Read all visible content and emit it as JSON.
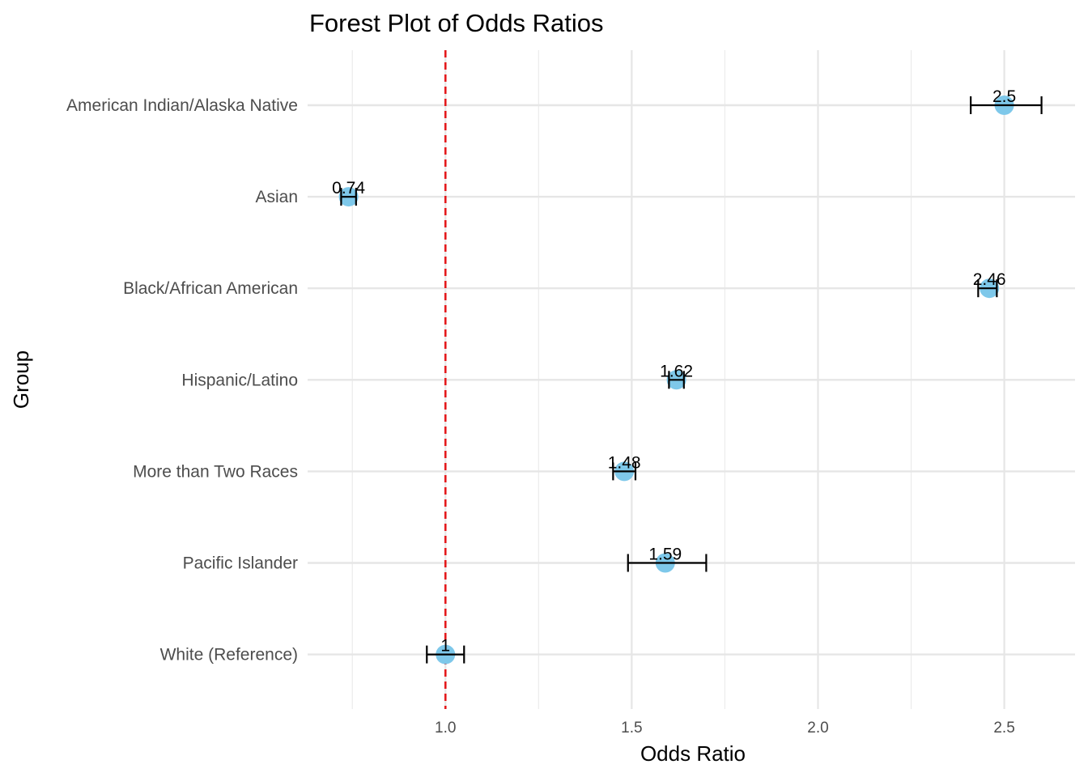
{
  "chart_data": {
    "type": "forest",
    "title": "Forest Plot of Odds Ratios",
    "xlabel": "Odds Ratio",
    "ylabel": "Group",
    "xlim": [
      0.63,
      2.69
    ],
    "x_ticks": [
      1.0,
      1.5,
      2.0,
      2.5
    ],
    "x_tick_labels": [
      "1.0",
      "1.5",
      "2.0",
      "2.5"
    ],
    "grid": true,
    "reference_line": {
      "x": 1.0,
      "color": "#e41a1c",
      "style": "dashed"
    },
    "point_color": "#7ec8ea",
    "errorbar_color": "#000000",
    "groups": [
      {
        "label": "American Indian/Alaska Native",
        "or": 2.5,
        "lower": 2.41,
        "upper": 2.6,
        "or_label": "2.5"
      },
      {
        "label": "Asian",
        "or": 0.74,
        "lower": 0.72,
        "upper": 0.76,
        "or_label": "0.74"
      },
      {
        "label": "Black/African American",
        "or": 2.46,
        "lower": 2.43,
        "upper": 2.48,
        "or_label": "2.46"
      },
      {
        "label": "Hispanic/Latino",
        "or": 1.62,
        "lower": 1.6,
        "upper": 1.64,
        "or_label": "1.62"
      },
      {
        "label": "More than Two Races",
        "or": 1.48,
        "lower": 1.45,
        "upper": 1.51,
        "or_label": "1.48"
      },
      {
        "label": "Pacific Islander",
        "or": 1.59,
        "lower": 1.49,
        "upper": 1.7,
        "or_label": "1.59"
      },
      {
        "label": "White (Reference)",
        "or": 1.0,
        "lower": 0.95,
        "upper": 1.05,
        "or_label": "1"
      }
    ]
  }
}
